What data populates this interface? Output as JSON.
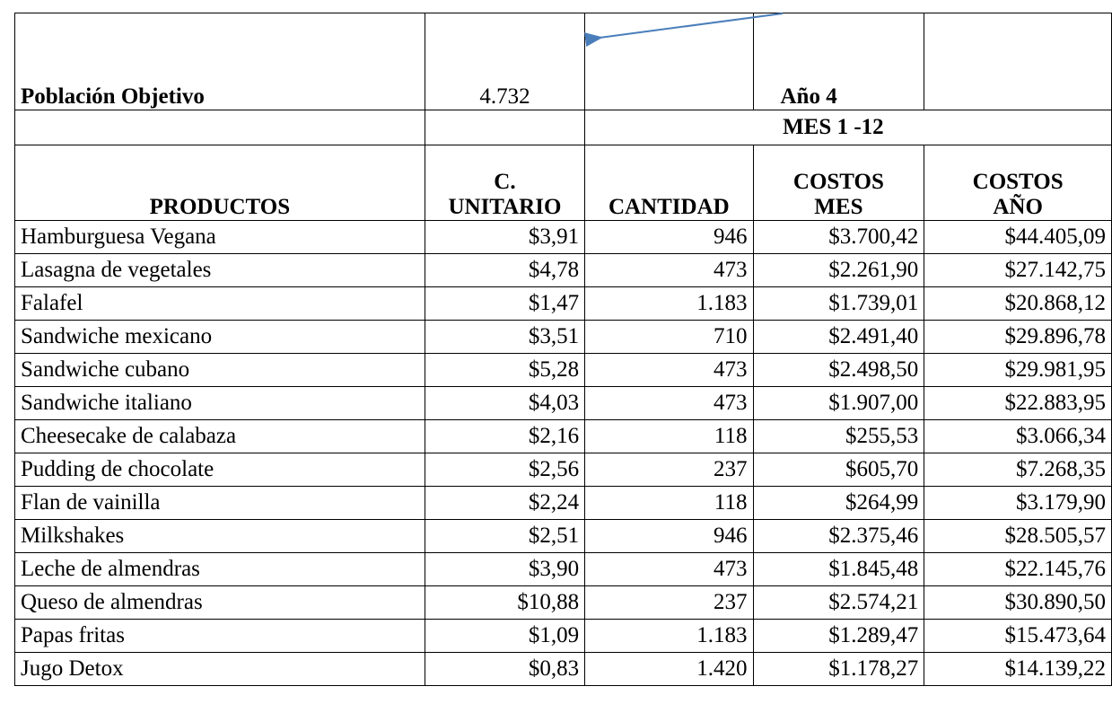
{
  "header": {
    "population_label": "Población Objetivo",
    "population_value": "4.732",
    "year_label": "Año 4",
    "period_label": "MES 1 -12"
  },
  "table": {
    "columns": [
      [
        "PRODUCTOS"
      ],
      [
        "C.",
        "UNITARIO"
      ],
      [
        "CANTIDAD"
      ],
      [
        "COSTOS",
        "MES"
      ],
      [
        "COSTOS",
        "AÑO"
      ]
    ],
    "rows": [
      [
        "Hamburguesa Vegana",
        "$3,91",
        "946",
        "$3.700,42",
        "$44.405,09"
      ],
      [
        "Lasagna de vegetales",
        "$4,78",
        "473",
        "$2.261,90",
        "$27.142,75"
      ],
      [
        "Falafel",
        "$1,47",
        "1.183",
        "$1.739,01",
        "$20.868,12"
      ],
      [
        "Sandwiche mexicano",
        "$3,51",
        "710",
        "$2.491,40",
        "$29.896,78"
      ],
      [
        "Sandwiche cubano",
        "$5,28",
        "473",
        "$2.498,50",
        "$29.981,95"
      ],
      [
        "Sandwiche italiano",
        "$4,03",
        "473",
        "$1.907,00",
        "$22.883,95"
      ],
      [
        "Cheesecake de calabaza",
        "$2,16",
        "118",
        "$255,53",
        "$3.066,34"
      ],
      [
        "Pudding de chocolate",
        "$2,56",
        "237",
        "$605,70",
        "$7.268,35"
      ],
      [
        "Flan de vainilla",
        "$2,24",
        "118",
        "$264,99",
        "$3.179,90"
      ],
      [
        "Milkshakes",
        "$2,51",
        "946",
        "$2.375,46",
        "$28.505,57"
      ],
      [
        "Leche de almendras",
        "$3,90",
        "473",
        "$1.845,48",
        "$22.145,76"
      ],
      [
        "Queso de almendras",
        "$10,88",
        "237",
        "$2.574,21",
        "$30.890,50"
      ],
      [
        "Papas fritas",
        "$1,09",
        "1.183",
        "$1.289,47",
        "$15.473,64"
      ],
      [
        "Jugo Detox",
        "$0,83",
        "1.420",
        "$1.178,27",
        "$14.139,22"
      ]
    ]
  }
}
